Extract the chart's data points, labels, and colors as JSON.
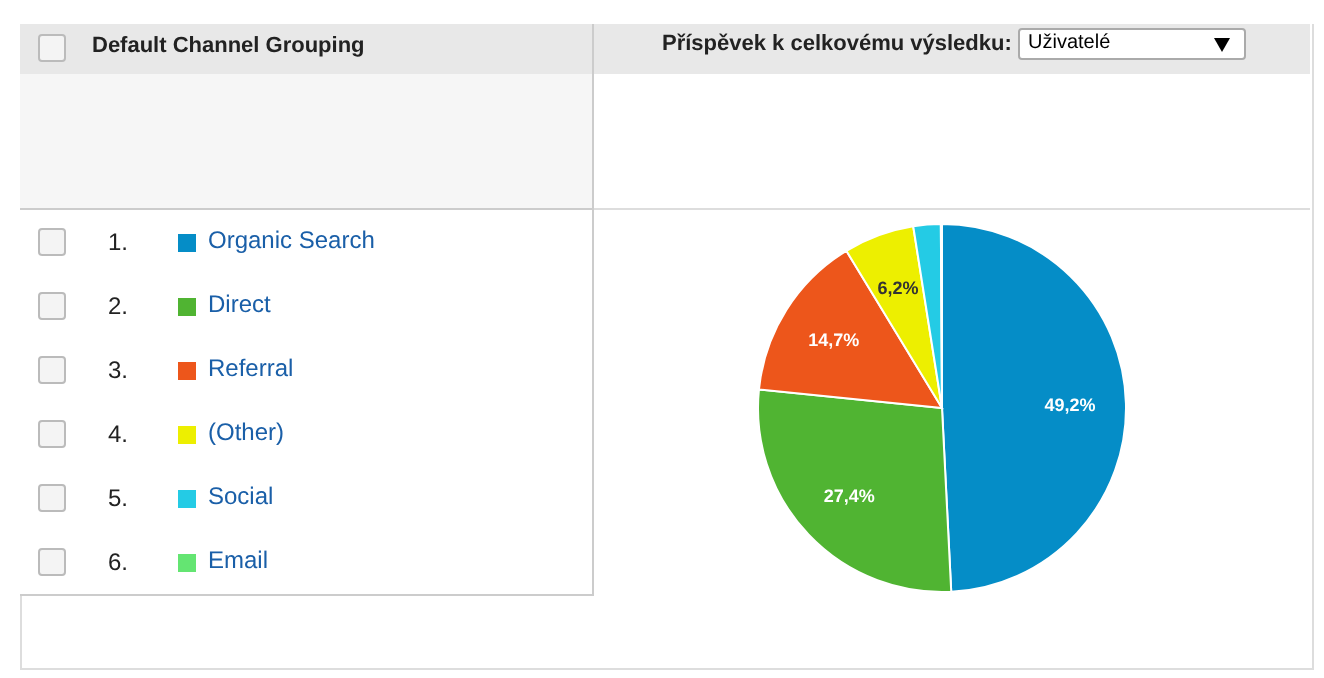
{
  "chart_data": {
    "type": "pie",
    "title": "Příspěvek k celkovému výsledku:",
    "subtitle": "Uživatelé",
    "legend_title": "Default Channel Grouping",
    "categories": [
      "Organic Search",
      "Direct",
      "Referral",
      "(Other)",
      "Social",
      "Email"
    ],
    "values": [
      49.2,
      27.4,
      14.7,
      6.2,
      2.4,
      0.1
    ],
    "colors": [
      "#058dc7",
      "#50b432",
      "#ed561b",
      "#edef00",
      "#24cbe5",
      "#64e572"
    ],
    "value_labels": [
      "49,2%",
      "27,4%",
      "14,7%",
      "6,2%",
      null,
      null
    ],
    "annotations": [
      "1.",
      "2.",
      "3.",
      "4.",
      "5.",
      "6."
    ],
    "legend": "left"
  }
}
